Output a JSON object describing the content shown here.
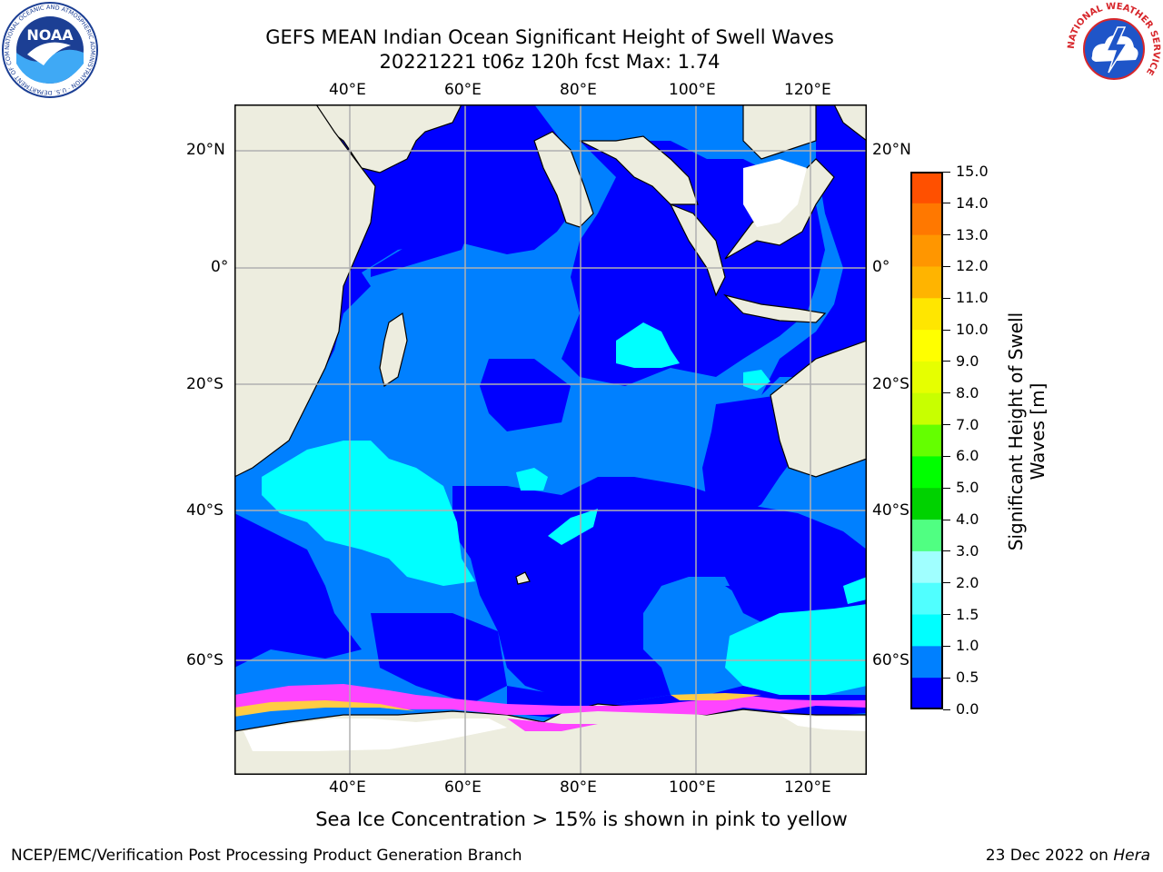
{
  "title": {
    "line1": "GEFS MEAN Indian Ocean Significant Height of Swell Waves",
    "line2": "20221221 t06z 120h fcst   Max: 1.74"
  },
  "map": {
    "lon_ticks": [
      "40°E",
      "60°E",
      "80°E",
      "100°E",
      "120°E"
    ],
    "lat_ticks": [
      "20°N",
      "0°",
      "20°S",
      "40°S",
      "60°S"
    ],
    "colors": {
      "land": "#ededdf",
      "deep_blue": "#0000ff",
      "mid_blue": "#0080ff",
      "cyan": "#00ffff",
      "ice_pink": "#ff44ff",
      "ice_yellow": "#ffcc44",
      "grid": "#b0b0b0"
    }
  },
  "colorbar": {
    "title_line1": "Significant Height of Swell",
    "title_line2": "Waves [m]",
    "labels": [
      "15.0",
      "14.0",
      "13.0",
      "12.0",
      "11.0",
      "10.0",
      "9.0",
      "8.0",
      "7.0",
      "6.0",
      "5.0",
      "4.0",
      "3.0",
      "2.0",
      "1.5",
      "1.0",
      "0.5",
      "0.0"
    ],
    "colors": [
      "#ff0000",
      "#ff2800",
      "#ff5000",
      "#ff7800",
      "#ff9600",
      "#ffb400",
      "#ffe600",
      "#ffff00",
      "#e6ff00",
      "#c8ff00",
      "#64ff00",
      "#00ff00",
      "#00d200",
      "#50ff82",
      "#a0ffff",
      "#50ffff",
      "#00ffff",
      "#0080ff",
      "#0000ff"
    ]
  },
  "logos": {
    "noaa_text": "NOAA",
    "noaa_ring": "NATIONAL OCEANIC AND ATMOSPHERIC ADMINISTRATION · U.S. DEPARTMENT OF COMMERCE",
    "nws_ring": "NATIONAL WEATHER SERVICE"
  },
  "note": "Sea Ice Concentration > 15% is shown in pink to yellow",
  "footer": {
    "left": "NCEP/EMC/Verification Post Processing Product Generation Branch",
    "right_prefix": "23 Dec 2022 on ",
    "right_host": "Hera"
  }
}
